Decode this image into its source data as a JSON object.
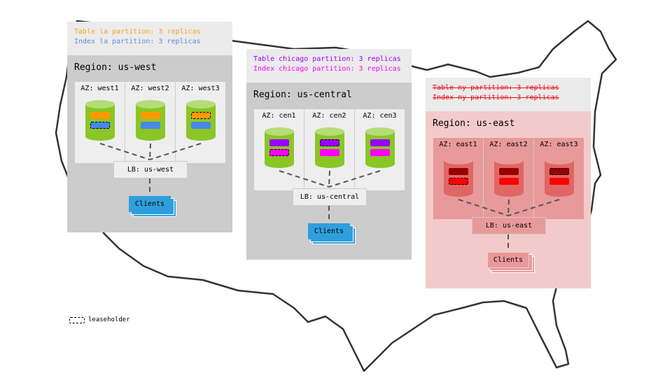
{
  "legend": {
    "label": "leaseholder"
  },
  "regions": [
    {
      "id": "west",
      "partition_lines": [
        {
          "text": "Table la partition: 3 replicas",
          "color": "#f7a21b",
          "struck": false
        },
        {
          "text": "Index la partition: 3 replicas",
          "color": "#5b8fdf",
          "struck": false
        }
      ],
      "title": "Region: us-west",
      "lb": "LB: us-west",
      "clients": "Clients",
      "colors": {
        "body": "#cccccc",
        "az": "#eeeeee",
        "cyl": "#8ac626",
        "cyltop": "#b5dc77",
        "bar1": "#ff9900",
        "bar2": "#4a86e8",
        "lb": "#eeeeee",
        "clients": "#2f9fdc",
        "clients_border": "#2f9fdc"
      },
      "azs": [
        {
          "label": "AZ: west1",
          "leaseholder": "index"
        },
        {
          "label": "AZ: west2",
          "leaseholder": "none"
        },
        {
          "label": "AZ: west3",
          "leaseholder": "table"
        }
      ]
    },
    {
      "id": "central",
      "partition_lines": [
        {
          "text": "Table chicago partition: 3 replicas",
          "color": "#9900ff",
          "struck": false
        },
        {
          "text": "Index chicago partition: 3 replicas",
          "color": "#ff00ff",
          "struck": false
        }
      ],
      "title": "Region: us-central",
      "lb": "LB: us-central",
      "clients": "Clients",
      "colors": {
        "body": "#cccccc",
        "az": "#eeeeee",
        "cyl": "#8ac626",
        "cyltop": "#b5dc77",
        "bar1": "#9900ff",
        "bar2": "#ff00ff",
        "lb": "#eeeeee",
        "clients": "#2f9fdc",
        "clients_border": "#2f9fdc"
      },
      "azs": [
        {
          "label": "AZ: cen1",
          "leaseholder": "index"
        },
        {
          "label": "AZ: cen2",
          "leaseholder": "table"
        },
        {
          "label": "AZ: cen3",
          "leaseholder": "none"
        }
      ]
    },
    {
      "id": "east",
      "partition_lines": [
        {
          "text": "Table ny partition: 3 replicas",
          "color": "#e8141a",
          "struck": true
        },
        {
          "text": "Index ny partition: 3 replicas",
          "color": "#e8141a",
          "struck": true
        }
      ],
      "title": "Region: us-east",
      "lb": "LB: us-east",
      "clients": "Clients",
      "colors": {
        "body": "#f3caca",
        "az": "#e89999",
        "cyl": "#e06666",
        "cyltop": "#ea9999",
        "bar1": "#990000",
        "bar2": "#ff0000",
        "lb": "#e89999",
        "clients": "#e89999",
        "clients_border": "#f3caca"
      },
      "azs": [
        {
          "label": "AZ: east1",
          "leaseholder": "index"
        },
        {
          "label": "AZ: east2",
          "leaseholder": "none"
        },
        {
          "label": "AZ: east3",
          "leaseholder": "table"
        }
      ]
    }
  ]
}
